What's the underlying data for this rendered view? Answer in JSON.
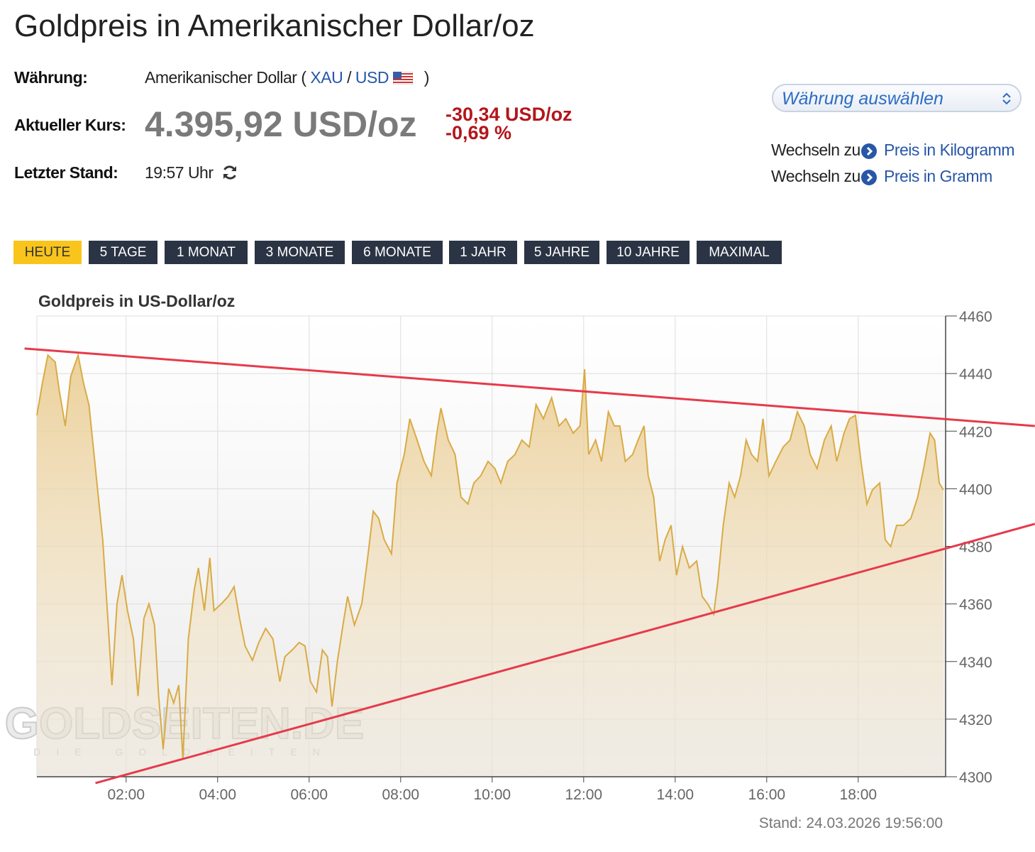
{
  "header": {
    "title": "Goldpreis in Amerikanischer Dollar/oz",
    "currency_label": "Währung:",
    "currency_prefix": "Amerikanischer Dollar (",
    "base": "XAU",
    "separator": "/",
    "quote": "USD",
    "currency_suffix": ")",
    "price_label": "Aktueller Kurs:",
    "price": "4.395,92 USD/oz",
    "change": "-30,34 USD/oz",
    "change_pct": "-0,69 %",
    "time_label": "Letzter Stand:",
    "time": "19:57 Uhr",
    "select": "Währung auswählen",
    "links": [
      {
        "prefix": "Wechseln zu",
        "label": "Preis in Kilogramm"
      },
      {
        "prefix": "Wechseln zu",
        "label": "Preis in Gramm"
      }
    ],
    "tabs": [
      "HEUTE",
      "5 TAGE",
      "1 MONAT",
      "3 MONATE",
      "6 MONATE",
      "1 JAHR",
      "5 JAHRE",
      "10 JAHRE",
      "MAXIMAL"
    ],
    "active_tab": 0
  },
  "chart_data": {
    "type": "area",
    "title": "Goldpreis in US-Dollar/oz",
    "footer": "Stand: 24.03.2026 19:56:00",
    "watermark": "GOLDSEITEN.DE",
    "watermark_sub": "DIE GOLDSEITEN",
    "color": "#d9ab45",
    "grid": true,
    "xlim": [
      0.05,
      19.91
    ],
    "xticks": [
      {
        "value": 2,
        "label": "02:00"
      },
      {
        "value": 4,
        "label": "04:00"
      },
      {
        "value": 6,
        "label": "06:00"
      },
      {
        "value": 8,
        "label": "08:00"
      },
      {
        "value": 10,
        "label": "10:00"
      },
      {
        "value": 12,
        "label": "12:00"
      },
      {
        "value": 14,
        "label": "14:00"
      },
      {
        "value": 16,
        "label": "16:00"
      },
      {
        "value": 18,
        "label": "18:00"
      }
    ],
    "ylim": [
      4300,
      4460
    ],
    "yticks": [
      4300,
      4320,
      4340,
      4360,
      4380,
      4400,
      4420,
      4440,
      4460
    ],
    "x": [
      0.05,
      0.17,
      0.29,
      0.45,
      0.54,
      0.67,
      0.79,
      0.95,
      1.07,
      1.19,
      1.33,
      1.49,
      1.6,
      1.69,
      1.8,
      1.91,
      2.03,
      2.16,
      2.26,
      2.39,
      2.5,
      2.62,
      2.71,
      2.81,
      2.93,
      3.04,
      3.15,
      3.24,
      3.36,
      3.49,
      3.58,
      3.71,
      3.83,
      3.92,
      4.08,
      4.23,
      4.36,
      4.48,
      4.6,
      4.76,
      4.9,
      5.05,
      5.21,
      5.36,
      5.47,
      5.63,
      5.78,
      5.91,
      6.03,
      6.16,
      6.29,
      6.4,
      6.5,
      6.62,
      6.74,
      6.84,
      6.99,
      7.15,
      7.27,
      7.4,
      7.52,
      7.64,
      7.8,
      7.92,
      8.08,
      8.2,
      8.36,
      8.51,
      8.67,
      8.79,
      8.88,
      9.04,
      9.19,
      9.32,
      9.47,
      9.6,
      9.75,
      9.91,
      10.06,
      10.19,
      10.34,
      10.5,
      10.65,
      10.81,
      10.96,
      11.12,
      11.3,
      11.46,
      11.61,
      11.77,
      11.92,
      12.02,
      12.11,
      12.26,
      12.39,
      12.54,
      12.67,
      12.79,
      12.91,
      13.07,
      13.19,
      13.32,
      13.41,
      13.53,
      13.66,
      13.78,
      13.91,
      14.03,
      14.16,
      14.31,
      14.47,
      14.59,
      14.71,
      14.84,
      14.93,
      15.05,
      15.18,
      15.3,
      15.43,
      15.55,
      15.67,
      15.8,
      15.92,
      16.05,
      16.2,
      16.36,
      16.51,
      16.67,
      16.82,
      16.95,
      17.1,
      17.26,
      17.41,
      17.53,
      17.69,
      17.81,
      17.94,
      18.06,
      18.19,
      18.31,
      18.47,
      18.59,
      18.71,
      18.84,
      18.99,
      19.15,
      19.3,
      19.43,
      19.57,
      19.67,
      19.77,
      19.86
    ],
    "values": [
      4425.5,
      4436.6,
      4446.4,
      4444,
      4434,
      4421.8,
      4439,
      4446.4,
      4436.6,
      4429,
      4407,
      4382,
      4355,
      4331.8,
      4360,
      4370,
      4357.7,
      4347.8,
      4328,
      4355,
      4360,
      4352.7,
      4328,
      4309.6,
      4330.6,
      4325.6,
      4331.8,
      4306,
      4347.8,
      4365,
      4372.5,
      4357.7,
      4376,
      4357.7,
      4360,
      4362.6,
      4366,
      4355,
      4345.4,
      4340.4,
      4346.6,
      4351.5,
      4347.8,
      4333,
      4341.7,
      4344,
      4346.6,
      4345.4,
      4333,
      4329.4,
      4344,
      4341.7,
      4324.4,
      4340.4,
      4352.7,
      4362.6,
      4352.7,
      4360,
      4374.9,
      4392.2,
      4389.7,
      4382.3,
      4377.4,
      4402,
      4411.9,
      4424.3,
      4416.9,
      4409.5,
      4404.5,
      4419.3,
      4428,
      4416.9,
      4411.9,
      4397.1,
      4394.7,
      4402,
      4404.5,
      4409.5,
      4407,
      4402,
      4409.5,
      4411.9,
      4416.9,
      4414.5,
      4429.2,
      4424.3,
      4431.6,
      4421.8,
      4424.3,
      4419.3,
      4421.8,
      4441.5,
      4411.9,
      4416.9,
      4409.5,
      4426.7,
      4421.8,
      4421.8,
      4409.5,
      4411.9,
      4416.9,
      4421.8,
      4404.5,
      4397.1,
      4374.9,
      4382.3,
      4387.3,
      4370,
      4379.9,
      4372.5,
      4374.9,
      4362.6,
      4360,
      4356.4,
      4367.5,
      4387.3,
      4402,
      4397.1,
      4404.5,
      4416.9,
      4411.9,
      4409.5,
      4424.3,
      4404.5,
      4409.5,
      4414.5,
      4416.9,
      4426.7,
      4421.8,
      4411.9,
      4407,
      4416.9,
      4421.8,
      4409.5,
      4419.3,
      4424.3,
      4425.5,
      4409.5,
      4394.7,
      4399.6,
      4402,
      4382.3,
      4379.9,
      4387.3,
      4387.3,
      4389.7,
      4397.1,
      4407,
      4419.3,
      4416.9,
      4402,
      4399.6
    ],
    "trendlines": [
      {
        "color": "#e63a4c",
        "points": [
          [
            -0.22,
            4448.7
          ],
          [
            21.86,
            4421.8
          ]
        ]
      },
      {
        "color": "#e63a4c",
        "points": [
          [
            1.33,
            4297.8
          ],
          [
            21.86,
            4387.8
          ]
        ]
      }
    ]
  }
}
